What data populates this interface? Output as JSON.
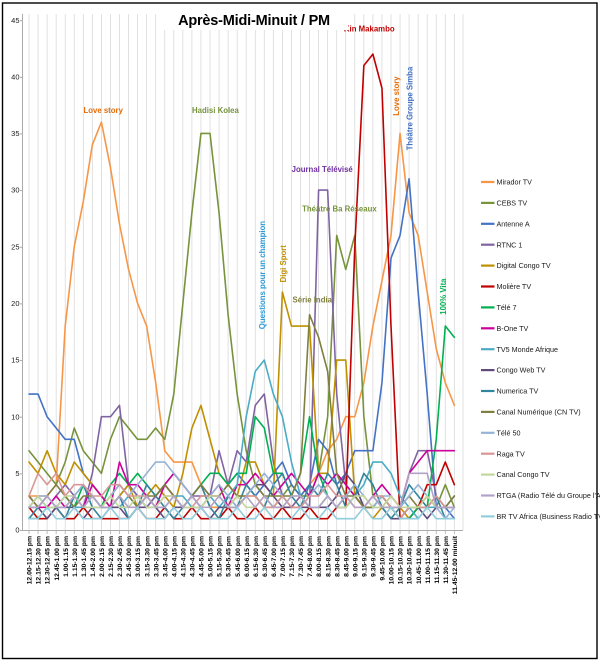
{
  "chart_data": {
    "type": "line",
    "title": "Après-Midi-Minuit / PM",
    "xlabel": "",
    "ylabel": "",
    "ylim": [
      0,
      45
    ],
    "y_ticks": [
      0,
      5,
      10,
      15,
      20,
      25,
      30,
      35,
      40,
      45
    ],
    "grid": "vertical-category-gridlines-only",
    "legend_position": "right",
    "x_categories": [
      "12.00-12.15 pm",
      "12.15-12.30 pm",
      "12.30-12.45 pm",
      "12.45-1.00 pm",
      "1.00-1.15 pm",
      "1.15-1.30 pm",
      "1.30-1.45 pm",
      "1.45-2.00 pm",
      "2.00-2.15 pm",
      "2.15-2.30 pm",
      "2.30-2.45 pm",
      "2.45-3.00 pm",
      "3.00-3.15 pm",
      "3.15-3.30 pm",
      "3.30-3.45 pm",
      "3.45-4.00 pm",
      "4.00-4.15 pm",
      "4.15-4.30 pm",
      "4.30-4.45 pm",
      "4.45-5.00 pm",
      "5.00-5.15 pm",
      "5.15-5.30 pm",
      "5.30-5.45 pm",
      "5.45-6.00 pm",
      "6.00-6.15 pm",
      "6.15-6.30 pm",
      "6.30-6.45 pm",
      "6.45-7.00 pm",
      "7.00-7.15 pm",
      "7.15-7.30 pm",
      "7.30-7.45 pm",
      "7.45-8.00 pm",
      "8.00-8.15 pm",
      "8.15-8.30 pm",
      "8.30-8.45 pm",
      "8.45-9.00 pm",
      "9.00-9.15 pm",
      "9.15-9.30 pm",
      "9.30-9.45 pm",
      "9.45-10.00 pm",
      "10.00-10.15 pm",
      "10.15-10.30 pm",
      "10.30-10.45 pm",
      "10.45-11.00 pm",
      "11.00-11.15 pm",
      "11.15-11.30 pm",
      "11.30-11.45 pm",
      "11.45-12.00 minuit"
    ],
    "series": [
      {
        "name": "Mirador TV",
        "color": "#F79646",
        "values": [
          3,
          3,
          3,
          4,
          18,
          25,
          29,
          34,
          36,
          32,
          27,
          23,
          20,
          18,
          13,
          7,
          6,
          6,
          6,
          4,
          2,
          2,
          2,
          3,
          3,
          3,
          2,
          2,
          2,
          2,
          3,
          4,
          5,
          7,
          8,
          10,
          10,
          13,
          18,
          22,
          26,
          35,
          28,
          26,
          21,
          16,
          13,
          11
        ]
      },
      {
        "name": "CEBS TV",
        "color": "#77933C",
        "values": [
          7,
          6,
          5,
          4,
          6,
          9,
          7,
          6,
          5,
          8,
          10,
          9,
          8,
          8,
          9,
          8,
          12,
          20,
          28,
          35,
          35,
          28,
          19,
          12,
          7,
          4,
          3,
          2,
          3,
          4,
          3,
          3,
          5,
          10,
          26,
          23,
          26,
          10,
          3,
          2,
          2,
          1,
          2,
          2,
          3,
          2,
          4,
          2
        ]
      },
      {
        "name": "Antenne A",
        "color": "#4472C4",
        "values": [
          12,
          12,
          10,
          9,
          8,
          8,
          5,
          4,
          3,
          2,
          3,
          4,
          3,
          2,
          3,
          4,
          3,
          2,
          3,
          4,
          3,
          3,
          4,
          5,
          4,
          3,
          4,
          5,
          6,
          4,
          3,
          4,
          8,
          7,
          4,
          5,
          7,
          7,
          7,
          13,
          24,
          26,
          31,
          21,
          12,
          2,
          2,
          1
        ]
      },
      {
        "name": "RTNC 1",
        "color": "#8064A2",
        "values": [
          2,
          3,
          2,
          3,
          4,
          3,
          2,
          5,
          10,
          10,
          11,
          4,
          3,
          2,
          3,
          4,
          3,
          2,
          3,
          3,
          3,
          7,
          4,
          7,
          6,
          11,
          12,
          6,
          3,
          2,
          3,
          2,
          30,
          30,
          12,
          4,
          3,
          2,
          2,
          3,
          2,
          2,
          5,
          7,
          7,
          3,
          2,
          3
        ]
      },
      {
        "name": "Digital Congo TV",
        "color": "#BF9000",
        "values": [
          6,
          5,
          7,
          5,
          4,
          6,
          5,
          4,
          3,
          2,
          3,
          4,
          2,
          3,
          4,
          3,
          2,
          5,
          9,
          11,
          8,
          5,
          4,
          3,
          6,
          6,
          4,
          3,
          21,
          18,
          18,
          18,
          5,
          5,
          15,
          15,
          3,
          2,
          1,
          2,
          3,
          2,
          1,
          2,
          3,
          2,
          2,
          2
        ]
      },
      {
        "name": "Molière TV",
        "color": "#C00000",
        "values": [
          2,
          1,
          1,
          2,
          1,
          1,
          2,
          1,
          1,
          1,
          1,
          1,
          2,
          1,
          1,
          2,
          1,
          1,
          2,
          1,
          1,
          1,
          2,
          1,
          1,
          2,
          1,
          1,
          2,
          1,
          1,
          2,
          1,
          1,
          2,
          2,
          25,
          41,
          42,
          39,
          18,
          1,
          1,
          2,
          4,
          4,
          6,
          4
        ]
      },
      {
        "name": "Télé 7",
        "color": "#00B050",
        "values": [
          1,
          1,
          2,
          2,
          3,
          2,
          4,
          3,
          2,
          4,
          5,
          4,
          5,
          4,
          3,
          4,
          5,
          4,
          3,
          4,
          5,
          5,
          4,
          5,
          5,
          10,
          9,
          5,
          5,
          3,
          5,
          10,
          5,
          3,
          2,
          3,
          4,
          2,
          2,
          3,
          2,
          1,
          1,
          2,
          2,
          8,
          18,
          17
        ]
      },
      {
        "name": "B-One TV",
        "color": "#CC0099",
        "values": [
          3,
          2,
          2,
          3,
          2,
          3,
          2,
          4,
          3,
          2,
          6,
          4,
          4,
          3,
          2,
          4,
          5,
          4,
          3,
          2,
          3,
          4,
          2,
          4,
          4,
          5,
          4,
          3,
          4,
          5,
          4,
          3,
          5,
          4,
          5,
          4,
          3,
          2,
          3,
          4,
          3,
          2,
          5,
          6,
          7,
          7,
          7,
          7
        ]
      },
      {
        "name": "TV5 Monde Afrique",
        "color": "#4BACC6",
        "values": [
          2,
          3,
          2,
          2,
          3,
          2,
          2,
          3,
          2,
          2,
          2,
          3,
          2,
          3,
          2,
          2,
          3,
          3,
          2,
          2,
          3,
          2,
          3,
          4,
          10,
          14,
          15,
          12,
          10,
          6,
          3,
          2,
          2,
          3,
          2,
          2,
          3,
          4,
          6,
          6,
          5,
          3,
          2,
          1,
          2,
          2,
          2,
          2
        ]
      },
      {
        "name": "Congo Web TV",
        "color": "#604A7B",
        "values": [
          2,
          2,
          1,
          2,
          2,
          2,
          1,
          2,
          2,
          2,
          2,
          1,
          2,
          2,
          2,
          1,
          2,
          2,
          2,
          2,
          1,
          2,
          2,
          2,
          3,
          4,
          4,
          3,
          2,
          2,
          2,
          2,
          2,
          2,
          3,
          5,
          4,
          2,
          2,
          2,
          1,
          1,
          2,
          2,
          1,
          2,
          2,
          2
        ]
      },
      {
        "name": "Numerica TV",
        "color": "#31859C",
        "values": [
          1,
          2,
          3,
          2,
          1,
          3,
          4,
          2,
          1,
          2,
          3,
          1,
          2,
          4,
          3,
          2,
          1,
          2,
          3,
          4,
          2,
          1,
          3,
          2,
          4,
          3,
          2,
          4,
          5,
          3,
          2,
          4,
          3,
          5,
          4,
          2,
          3,
          5,
          4,
          2,
          1,
          2,
          4,
          3,
          2,
          3,
          1,
          1
        ]
      },
      {
        "name": "Canal Numérique (CN TV)",
        "color": "#7F7F3F",
        "values": [
          3,
          2,
          3,
          4,
          3,
          2,
          3,
          3,
          2,
          3,
          4,
          3,
          2,
          3,
          3,
          4,
          3,
          2,
          3,
          4,
          3,
          3,
          4,
          3,
          3,
          4,
          3,
          3,
          3,
          3,
          5,
          19,
          17,
          14,
          5,
          3,
          3,
          2,
          2,
          3,
          2,
          2,
          3,
          2,
          2,
          3,
          2,
          3
        ]
      },
      {
        "name": "Télé 50",
        "color": "#95B3D7",
        "values": [
          2,
          3,
          3,
          2,
          2,
          3,
          4,
          3,
          2,
          3,
          4,
          3,
          4,
          5,
          6,
          6,
          5,
          4,
          3,
          2,
          3,
          4,
          3,
          2,
          3,
          4,
          5,
          4,
          3,
          2,
          2,
          3,
          4,
          3,
          2,
          3,
          4,
          3,
          2,
          3,
          3,
          2,
          3,
          4,
          3,
          2,
          1,
          2
        ]
      },
      {
        "name": "Raga TV",
        "color": "#D99694",
        "values": [
          3,
          5,
          4,
          5,
          3,
          4,
          4,
          3,
          3,
          4,
          4,
          3,
          3,
          3,
          2,
          3,
          3,
          2,
          2,
          3,
          3,
          3,
          2,
          2,
          3,
          3,
          2,
          2,
          3,
          2,
          2,
          3,
          3,
          4,
          3,
          3,
          2,
          2,
          3,
          3,
          2,
          1,
          2,
          2,
          2,
          3,
          2,
          2
        ]
      },
      {
        "name": "Canal Congo TV",
        "color": "#C3D69B",
        "values": [
          2,
          3,
          2,
          2,
          3,
          3,
          2,
          2,
          2,
          3,
          2,
          2,
          3,
          2,
          2,
          3,
          3,
          2,
          2,
          2,
          3,
          3,
          2,
          3,
          2,
          2,
          3,
          2,
          2,
          3,
          3,
          2,
          2,
          3,
          2,
          2,
          3,
          3,
          2,
          2,
          3,
          2,
          2,
          2,
          3,
          2,
          2,
          2
        ]
      },
      {
        "name": "RTGA (Radio Télé du Groupe l'Avenir)",
        "color": "#B2A2C7",
        "values": [
          2,
          2,
          3,
          2,
          2,
          3,
          2,
          3,
          2,
          2,
          3,
          2,
          2,
          3,
          2,
          2,
          3,
          2,
          3,
          2,
          2,
          3,
          2,
          2,
          3,
          2,
          3,
          2,
          2,
          3,
          3,
          2,
          2,
          3,
          2,
          3,
          2,
          2,
          3,
          2,
          2,
          2,
          5,
          5,
          5,
          2,
          2,
          2
        ]
      },
      {
        "name": "BR TV Africa  (Business Radio TV)",
        "color": "#92CDDC",
        "values": [
          1,
          1,
          2,
          1,
          1,
          2,
          1,
          1,
          1,
          2,
          1,
          1,
          2,
          1,
          1,
          1,
          2,
          1,
          1,
          2,
          1,
          1,
          1,
          2,
          1,
          1,
          2,
          1,
          1,
          1,
          2,
          1,
          1,
          2,
          1,
          1,
          1,
          2,
          1,
          1,
          2,
          1,
          1,
          1,
          2,
          1,
          1,
          1
        ]
      }
    ],
    "annotations": [
      {
        "text": "Love story",
        "color": "#E36C09",
        "x_index": 8.2,
        "y_value": 36.8,
        "vertical": false
      },
      {
        "text": "Hadisi Kolea",
        "color": "#77933C",
        "x_index": 20.6,
        "y_value": 36.8,
        "vertical": false
      },
      {
        "text": "Kin Makambo",
        "color": "#C00000",
        "x_index": 37.6,
        "y_value": 44.0,
        "vertical": false
      },
      {
        "text": "Journal Télévisé",
        "color": "#7030A0",
        "x_index": 32.4,
        "y_value": 31.6,
        "vertical": false
      },
      {
        "text": "Théâtre Ba Réseaux",
        "color": "#76923C",
        "x_index": 34.3,
        "y_value": 28.1,
        "vertical": false
      },
      {
        "text": "Série India",
        "color": "#7F7F3F",
        "x_index": 31.3,
        "y_value": 20.1,
        "vertical": false
      },
      {
        "text": "Questions pour un champion",
        "color": "#2E9BD6",
        "x_index": 26.1,
        "y_value": 22.5,
        "vertical": true
      },
      {
        "text": "Digi Sport",
        "color": "#BF9000",
        "x_index": 28.4,
        "y_value": 23.5,
        "vertical": true
      },
      {
        "text": "Love story",
        "color": "#E36C09",
        "x_index": 40.9,
        "y_value": 38.3,
        "vertical": true
      },
      {
        "text": "Théâtre Groupe Simba",
        "color": "#4472C4",
        "x_index": 42.4,
        "y_value": 37.2,
        "vertical": true
      },
      {
        "text": "100% Vita",
        "color": "#00B050",
        "x_index": 46.1,
        "y_value": 20.6,
        "vertical": true
      }
    ]
  }
}
